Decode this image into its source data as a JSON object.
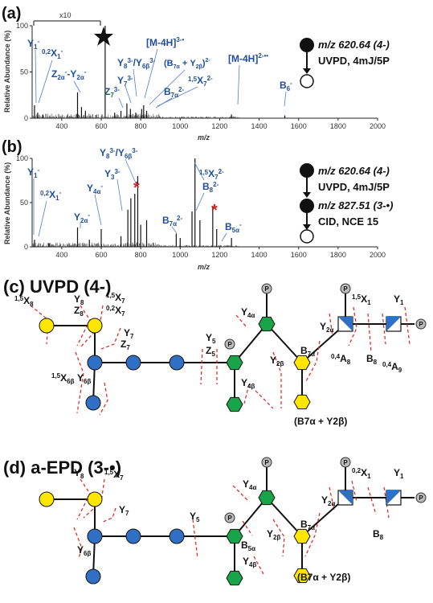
{
  "panel_a": {
    "letter": "(a)",
    "x10": "x10",
    "ylabel": "Relative Abundance (%)",
    "xlabel": "m/z",
    "scheme": {
      "mz": "m/z 620.64 (4-)",
      "method": "UVPD, 4mJ/5P"
    }
  },
  "panel_b": {
    "letter": "(b)",
    "ylabel": "Relative Abundance (%)",
    "xlabel": "m/z",
    "scheme": {
      "mz1": "m/z 620.64 (4-)",
      "method1": "UVPD, 4mJ/5P",
      "mz2": "m/z 827.51 (3-•)",
      "method2": "CID, NCE 15"
    }
  },
  "panel_c": {
    "title": "(c) UVPD (4-)",
    "bracket": "(B7α + Y2β)"
  },
  "panel_d": {
    "title": "(d) a-EPD (3-•)",
    "bracket": "(B7α + Y2β)"
  },
  "chart_data": [
    {
      "type": "bar",
      "title": "",
      "xlabel": "m/z",
      "ylabel": "Relative Abundance (%)",
      "xlim": [
        250,
        2000
      ],
      "ylim": [
        0,
        100
      ],
      "xticks": [
        400,
        600,
        800,
        1000,
        1200,
        1400,
        1600,
        1800,
        2000
      ],
      "yticks": [
        0,
        50,
        100
      ],
      "peaks": [
        [
          262,
          14
        ],
        [
          278,
          6
        ],
        [
          305,
          4
        ],
        [
          480,
          28
        ],
        [
          500,
          12
        ],
        [
          520,
          8
        ],
        [
          620,
          100
        ],
        [
          668,
          6
        ],
        [
          700,
          8
        ],
        [
          730,
          16
        ],
        [
          748,
          10
        ],
        [
          775,
          6
        ],
        [
          805,
          10
        ],
        [
          815,
          14
        ],
        [
          830,
          8
        ],
        [
          1260,
          4
        ],
        [
          1530,
          3
        ]
      ],
      "markers": {
        "precursor": 620,
        "scale_region": [
          250,
          620
        ]
      }
    },
    {
      "type": "bar",
      "title": "",
      "xlabel": "m/z",
      "ylabel": "Relative Abundance (%)",
      "xlim": [
        250,
        2000
      ],
      "ylim": [
        0,
        100
      ],
      "xticks": [
        400,
        600,
        800,
        1000,
        1200,
        1400,
        1600,
        1800,
        2000
      ],
      "yticks": [
        0,
        50,
        100
      ],
      "peaks": [
        [
          262,
          8
        ],
        [
          335,
          4
        ],
        [
          480,
          22
        ],
        [
          540,
          8
        ],
        [
          600,
          20
        ],
        [
          700,
          12
        ],
        [
          735,
          42
        ],
        [
          750,
          55
        ],
        [
          770,
          60
        ],
        [
          785,
          80
        ],
        [
          800,
          25
        ],
        [
          830,
          30
        ],
        [
          980,
          15
        ],
        [
          1000,
          10
        ],
        [
          1060,
          40
        ],
        [
          1075,
          100
        ],
        [
          1100,
          30
        ],
        [
          1165,
          45
        ],
        [
          1185,
          20
        ],
        [
          1260,
          10
        ]
      ],
      "markers": {
        "asterisks": [
          785,
          1165
        ]
      }
    }
  ],
  "labels_a": [
    "Y1-",
    "0,2X1-",
    "Z2α-Y2α-",
    "Y8 3-/Y6β 3-",
    "Z7 3-",
    "Y7 3-",
    "[M-4H]3-•",
    "(B7α + Y2β)2-",
    "1,5X7 2-",
    "B7α 2-",
    "[M-4H]2-••",
    "B6-"
  ],
  "labels_b": [
    "Y1-",
    "0,2X1-",
    "Y2α-",
    "Y4α-",
    "Y3 3-",
    "Y8 3-/Y6β 3-",
    "1,5X7 2-",
    "B8 2-",
    "B7α 2-",
    "B5α-"
  ]
}
